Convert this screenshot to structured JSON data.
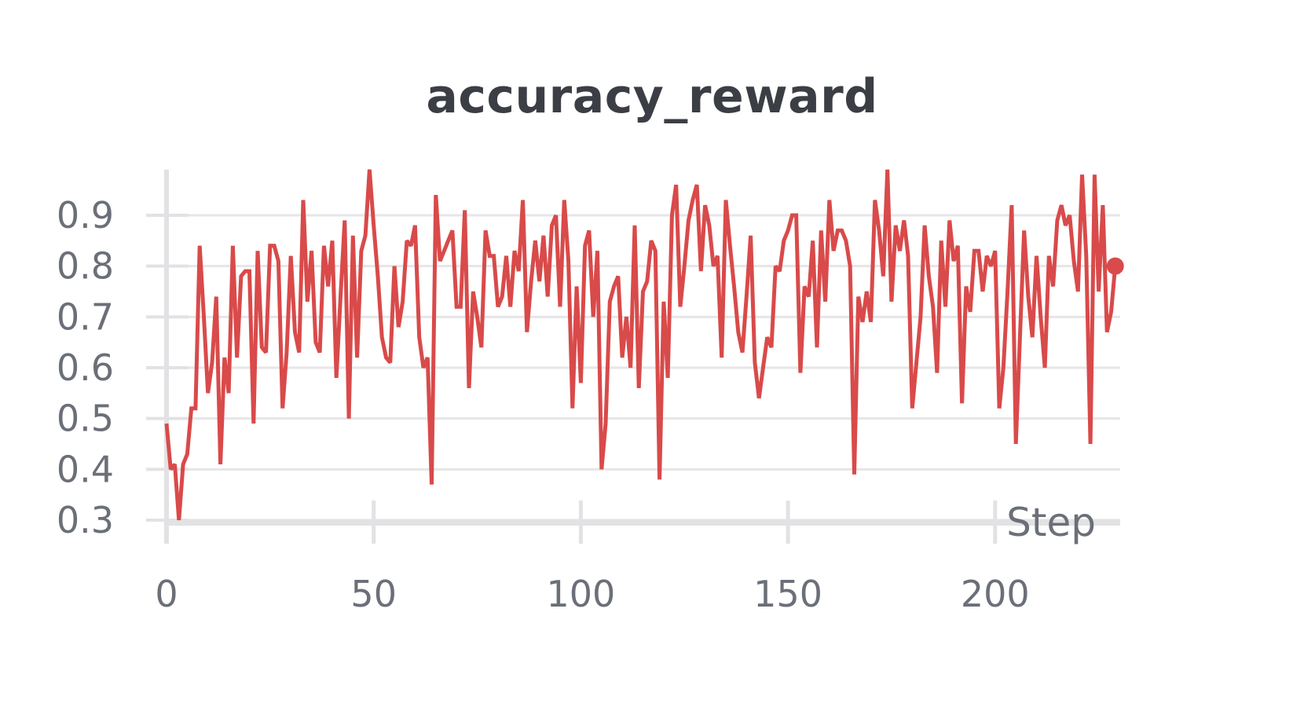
{
  "chart_data": {
    "type": "line",
    "title": "accuracy_reward",
    "xlabel": "Step",
    "ylabel": "",
    "xlim": [
      0,
      230
    ],
    "ylim": [
      0.3,
      1.0
    ],
    "grid": true,
    "x_ticks": [
      0,
      50,
      100,
      150,
      200
    ],
    "x_tick_labels": [
      "0",
      "50",
      "100",
      "150",
      "200"
    ],
    "y_ticks": [
      0.3,
      0.4,
      0.5,
      0.6,
      0.7,
      0.8,
      0.9
    ],
    "y_tick_labels": [
      "0.3",
      "0.4",
      "0.5",
      "0.6",
      "0.7",
      "0.8",
      "0.9"
    ],
    "line_color": "#d94a4a",
    "series": [
      {
        "values": [
          0.49,
          0.4,
          0.41,
          0.3,
          0.41,
          0.43,
          0.52,
          0.52,
          0.84,
          0.7,
          0.55,
          0.61,
          0.74,
          0.41,
          0.62,
          0.55,
          0.84,
          0.62,
          0.78,
          0.79,
          0.79,
          0.49,
          0.83,
          0.64,
          0.63,
          0.84,
          0.84,
          0.81,
          0.52,
          0.63,
          0.82,
          0.67,
          0.63,
          0.93,
          0.73,
          0.83,
          0.65,
          0.63,
          0.84,
          0.76,
          0.85,
          0.58,
          0.74,
          0.89,
          0.5,
          0.86,
          0.62,
          0.83,
          0.86,
          0.99,
          0.88,
          0.78,
          0.66,
          0.62,
          0.61,
          0.8,
          0.68,
          0.73,
          0.85,
          0.84,
          0.88,
          0.66,
          0.6,
          0.62,
          0.37,
          0.94,
          0.81,
          0.83,
          0.85,
          0.87,
          0.72,
          0.72,
          0.91,
          0.56,
          0.75,
          0.7,
          0.64,
          0.87,
          0.82,
          0.82,
          0.72,
          0.74,
          0.82,
          0.72,
          0.83,
          0.79,
          0.93,
          0.67,
          0.77,
          0.85,
          0.77,
          0.86,
          0.74,
          0.88,
          0.9,
          0.72,
          0.93,
          0.81,
          0.52,
          0.76,
          0.57,
          0.84,
          0.87,
          0.7,
          0.83,
          0.4,
          0.49,
          0.73,
          0.76,
          0.78,
          0.62,
          0.7,
          0.6,
          0.88,
          0.56,
          0.75,
          0.77,
          0.85,
          0.83,
          0.38,
          0.73,
          0.58,
          0.9,
          0.96,
          0.72,
          0.8,
          0.89,
          0.93,
          0.96,
          0.79,
          0.92,
          0.88,
          0.8,
          0.82,
          0.62,
          0.93,
          0.84,
          0.76,
          0.67,
          0.63,
          0.74,
          0.86,
          0.61,
          0.54,
          0.6,
          0.66,
          0.64,
          0.8,
          0.79,
          0.85,
          0.87,
          0.9,
          0.9,
          0.59,
          0.76,
          0.74,
          0.85,
          0.64,
          0.87,
          0.73,
          0.93,
          0.83,
          0.87,
          0.87,
          0.85,
          0.8,
          0.39,
          0.74,
          0.69,
          0.75,
          0.69,
          0.93,
          0.87,
          0.78,
          0.99,
          0.73,
          0.88,
          0.83,
          0.89,
          0.82,
          0.52,
          0.61,
          0.7,
          0.88,
          0.78,
          0.72,
          0.59,
          0.85,
          0.72,
          0.89,
          0.81,
          0.84,
          0.53,
          0.76,
          0.71,
          0.83,
          0.83,
          0.75,
          0.82,
          0.8,
          0.83,
          0.52,
          0.6,
          0.75,
          0.92,
          0.45,
          0.66,
          0.87,
          0.74,
          0.66,
          0.82,
          0.7,
          0.6,
          0.82,
          0.76,
          0.89,
          0.92,
          0.88,
          0.9,
          0.81,
          0.75,
          0.98,
          0.82,
          0.45,
          0.98,
          0.75,
          0.92,
          0.67,
          0.71,
          0.8
        ]
      }
    ]
  }
}
